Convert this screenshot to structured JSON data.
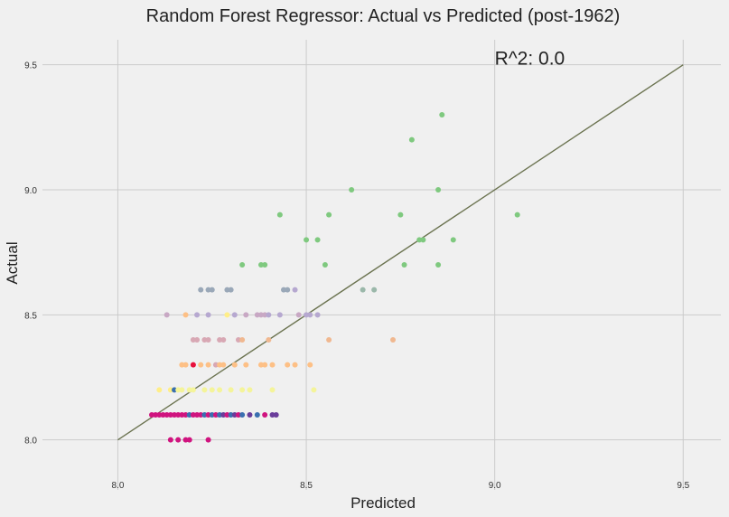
{
  "chart_data": {
    "type": "scatter",
    "title": "Random Forest Regressor: Actual vs Predicted (post-1962)",
    "xlabel": "Predicted",
    "ylabel": "Actual",
    "xlim": [
      7.8,
      9.6
    ],
    "ylim": [
      7.8,
      9.6
    ],
    "x_ticks": [
      8.0,
      8.5,
      9.0,
      9.5
    ],
    "y_ticks": [
      8.0,
      8.5,
      9.0,
      9.5
    ],
    "x_tick_labels": [
      "8.0",
      "8.5",
      "9.0",
      "9.5"
    ],
    "y_tick_labels": [
      "8.0",
      "8.5",
      "9.0",
      "9.5"
    ],
    "grid": true,
    "annotation": "R^2: 0.0",
    "annotation_position": [
      9.0,
      9.5
    ],
    "reference_line": {
      "from": [
        8.0,
        8.0
      ],
      "to": [
        9.5,
        9.5
      ],
      "color": "#6b7350"
    },
    "colors": {
      "background": "#f0f0f0",
      "grid": "#cbcbcb",
      "green": "#7fc97f",
      "teal": "#9bb8aa",
      "steel": "#9aa8b8",
      "lavender": "#b6a8d0",
      "mauve": "#c8a8c4",
      "pink": "#d8a8b4",
      "peach": "#f0b890",
      "orange": "#fdc086",
      "yellow": "#ffee88",
      "lightyellow": "#f4f49a",
      "blue": "#3a6fb0",
      "purple": "#6a3d9a",
      "magenta": "#d0147f",
      "red": "#e8103c"
    },
    "points": [
      {
        "x": 8.86,
        "y": 9.3,
        "c": "green"
      },
      {
        "x": 8.78,
        "y": 9.2,
        "c": "green"
      },
      {
        "x": 8.62,
        "y": 9.0,
        "c": "green"
      },
      {
        "x": 8.85,
        "y": 9.0,
        "c": "green"
      },
      {
        "x": 8.43,
        "y": 8.9,
        "c": "green"
      },
      {
        "x": 8.56,
        "y": 8.9,
        "c": "green"
      },
      {
        "x": 8.75,
        "y": 8.9,
        "c": "green"
      },
      {
        "x": 9.06,
        "y": 8.9,
        "c": "green"
      },
      {
        "x": 8.5,
        "y": 8.8,
        "c": "green"
      },
      {
        "x": 8.53,
        "y": 8.8,
        "c": "green"
      },
      {
        "x": 8.8,
        "y": 8.8,
        "c": "green"
      },
      {
        "x": 8.81,
        "y": 8.8,
        "c": "green"
      },
      {
        "x": 8.89,
        "y": 8.8,
        "c": "green"
      },
      {
        "x": 8.33,
        "y": 8.7,
        "c": "green"
      },
      {
        "x": 8.38,
        "y": 8.7,
        "c": "green"
      },
      {
        "x": 8.39,
        "y": 8.7,
        "c": "green"
      },
      {
        "x": 8.55,
        "y": 8.7,
        "c": "green"
      },
      {
        "x": 8.76,
        "y": 8.7,
        "c": "green"
      },
      {
        "x": 8.85,
        "y": 8.7,
        "c": "green"
      },
      {
        "x": 8.22,
        "y": 8.6,
        "c": "steel"
      },
      {
        "x": 8.24,
        "y": 8.6,
        "c": "steel"
      },
      {
        "x": 8.25,
        "y": 8.6,
        "c": "steel"
      },
      {
        "x": 8.29,
        "y": 8.6,
        "c": "steel"
      },
      {
        "x": 8.3,
        "y": 8.6,
        "c": "steel"
      },
      {
        "x": 8.44,
        "y": 8.6,
        "c": "steel"
      },
      {
        "x": 8.45,
        "y": 8.6,
        "c": "steel"
      },
      {
        "x": 8.47,
        "y": 8.6,
        "c": "lavender"
      },
      {
        "x": 8.65,
        "y": 8.6,
        "c": "teal"
      },
      {
        "x": 8.68,
        "y": 8.6,
        "c": "teal"
      },
      {
        "x": 8.13,
        "y": 8.5,
        "c": "mauve"
      },
      {
        "x": 8.18,
        "y": 8.5,
        "c": "orange"
      },
      {
        "x": 8.21,
        "y": 8.5,
        "c": "lavender"
      },
      {
        "x": 8.24,
        "y": 8.5,
        "c": "lavender"
      },
      {
        "x": 8.29,
        "y": 8.5,
        "c": "yellow"
      },
      {
        "x": 8.31,
        "y": 8.5,
        "c": "lavender"
      },
      {
        "x": 8.34,
        "y": 8.5,
        "c": "mauve"
      },
      {
        "x": 8.37,
        "y": 8.5,
        "c": "mauve"
      },
      {
        "x": 8.38,
        "y": 8.5,
        "c": "mauve"
      },
      {
        "x": 8.39,
        "y": 8.5,
        "c": "mauve"
      },
      {
        "x": 8.4,
        "y": 8.5,
        "c": "lavender"
      },
      {
        "x": 8.43,
        "y": 8.5,
        "c": "lavender"
      },
      {
        "x": 8.48,
        "y": 8.5,
        "c": "mauve"
      },
      {
        "x": 8.5,
        "y": 8.5,
        "c": "lavender"
      },
      {
        "x": 8.51,
        "y": 8.5,
        "c": "lavender"
      },
      {
        "x": 8.53,
        "y": 8.5,
        "c": "lavender"
      },
      {
        "x": 8.2,
        "y": 8.4,
        "c": "pink"
      },
      {
        "x": 8.21,
        "y": 8.4,
        "c": "pink"
      },
      {
        "x": 8.23,
        "y": 8.4,
        "c": "pink"
      },
      {
        "x": 8.24,
        "y": 8.4,
        "c": "pink"
      },
      {
        "x": 8.27,
        "y": 8.4,
        "c": "pink"
      },
      {
        "x": 8.28,
        "y": 8.4,
        "c": "pink"
      },
      {
        "x": 8.32,
        "y": 8.4,
        "c": "pink"
      },
      {
        "x": 8.33,
        "y": 8.4,
        "c": "peach"
      },
      {
        "x": 8.4,
        "y": 8.4,
        "c": "peach"
      },
      {
        "x": 8.56,
        "y": 8.4,
        "c": "peach"
      },
      {
        "x": 8.73,
        "y": 8.4,
        "c": "peach"
      },
      {
        "x": 8.17,
        "y": 8.3,
        "c": "orange"
      },
      {
        "x": 8.18,
        "y": 8.3,
        "c": "orange"
      },
      {
        "x": 8.2,
        "y": 8.3,
        "c": "red"
      },
      {
        "x": 8.22,
        "y": 8.3,
        "c": "orange"
      },
      {
        "x": 8.24,
        "y": 8.3,
        "c": "orange"
      },
      {
        "x": 8.26,
        "y": 8.3,
        "c": "pink"
      },
      {
        "x": 8.27,
        "y": 8.3,
        "c": "orange"
      },
      {
        "x": 8.28,
        "y": 8.3,
        "c": "orange"
      },
      {
        "x": 8.31,
        "y": 8.3,
        "c": "orange"
      },
      {
        "x": 8.34,
        "y": 8.3,
        "c": "orange"
      },
      {
        "x": 8.38,
        "y": 8.3,
        "c": "orange"
      },
      {
        "x": 8.39,
        "y": 8.3,
        "c": "orange"
      },
      {
        "x": 8.41,
        "y": 8.3,
        "c": "orange"
      },
      {
        "x": 8.45,
        "y": 8.3,
        "c": "orange"
      },
      {
        "x": 8.47,
        "y": 8.3,
        "c": "orange"
      },
      {
        "x": 8.51,
        "y": 8.3,
        "c": "orange"
      },
      {
        "x": 8.11,
        "y": 8.2,
        "c": "yellow"
      },
      {
        "x": 8.14,
        "y": 8.2,
        "c": "yellow"
      },
      {
        "x": 8.15,
        "y": 8.2,
        "c": "blue"
      },
      {
        "x": 8.16,
        "y": 8.2,
        "c": "lightyellow"
      },
      {
        "x": 8.17,
        "y": 8.2,
        "c": "lightyellow"
      },
      {
        "x": 8.19,
        "y": 8.2,
        "c": "lightyellow"
      },
      {
        "x": 8.2,
        "y": 8.2,
        "c": "lightyellow"
      },
      {
        "x": 8.23,
        "y": 8.2,
        "c": "lightyellow"
      },
      {
        "x": 8.25,
        "y": 8.2,
        "c": "lightyellow"
      },
      {
        "x": 8.27,
        "y": 8.2,
        "c": "lightyellow"
      },
      {
        "x": 8.3,
        "y": 8.2,
        "c": "lightyellow"
      },
      {
        "x": 8.33,
        "y": 8.2,
        "c": "lightyellow"
      },
      {
        "x": 8.35,
        "y": 8.2,
        "c": "lightyellow"
      },
      {
        "x": 8.41,
        "y": 8.2,
        "c": "lightyellow"
      },
      {
        "x": 8.52,
        "y": 8.2,
        "c": "lightyellow"
      },
      {
        "x": 8.09,
        "y": 8.1,
        "c": "magenta"
      },
      {
        "x": 8.1,
        "y": 8.1,
        "c": "magenta"
      },
      {
        "x": 8.11,
        "y": 8.1,
        "c": "magenta"
      },
      {
        "x": 8.12,
        "y": 8.1,
        "c": "magenta"
      },
      {
        "x": 8.13,
        "y": 8.1,
        "c": "magenta"
      },
      {
        "x": 8.14,
        "y": 8.1,
        "c": "magenta"
      },
      {
        "x": 8.15,
        "y": 8.1,
        "c": "magenta"
      },
      {
        "x": 8.16,
        "y": 8.1,
        "c": "magenta"
      },
      {
        "x": 8.17,
        "y": 8.1,
        "c": "magenta"
      },
      {
        "x": 8.18,
        "y": 8.1,
        "c": "magenta"
      },
      {
        "x": 8.19,
        "y": 8.1,
        "c": "blue"
      },
      {
        "x": 8.2,
        "y": 8.1,
        "c": "magenta"
      },
      {
        "x": 8.21,
        "y": 8.1,
        "c": "magenta"
      },
      {
        "x": 8.22,
        "y": 8.1,
        "c": "magenta"
      },
      {
        "x": 8.23,
        "y": 8.1,
        "c": "blue"
      },
      {
        "x": 8.24,
        "y": 8.1,
        "c": "magenta"
      },
      {
        "x": 8.25,
        "y": 8.1,
        "c": "blue"
      },
      {
        "x": 8.26,
        "y": 8.1,
        "c": "magenta"
      },
      {
        "x": 8.27,
        "y": 8.1,
        "c": "blue"
      },
      {
        "x": 8.28,
        "y": 8.1,
        "c": "purple"
      },
      {
        "x": 8.29,
        "y": 8.1,
        "c": "magenta"
      },
      {
        "x": 8.3,
        "y": 8.1,
        "c": "blue"
      },
      {
        "x": 8.31,
        "y": 8.1,
        "c": "purple"
      },
      {
        "x": 8.32,
        "y": 8.1,
        "c": "magenta"
      },
      {
        "x": 8.33,
        "y": 8.1,
        "c": "blue"
      },
      {
        "x": 8.35,
        "y": 8.1,
        "c": "purple"
      },
      {
        "x": 8.37,
        "y": 8.1,
        "c": "blue"
      },
      {
        "x": 8.39,
        "y": 8.1,
        "c": "magenta"
      },
      {
        "x": 8.41,
        "y": 8.1,
        "c": "purple"
      },
      {
        "x": 8.42,
        "y": 8.1,
        "c": "purple"
      },
      {
        "x": 8.14,
        "y": 8.0,
        "c": "magenta"
      },
      {
        "x": 8.16,
        "y": 8.0,
        "c": "magenta"
      },
      {
        "x": 8.18,
        "y": 8.0,
        "c": "magenta"
      },
      {
        "x": 8.19,
        "y": 8.0,
        "c": "magenta"
      },
      {
        "x": 8.24,
        "y": 8.0,
        "c": "magenta"
      }
    ]
  }
}
